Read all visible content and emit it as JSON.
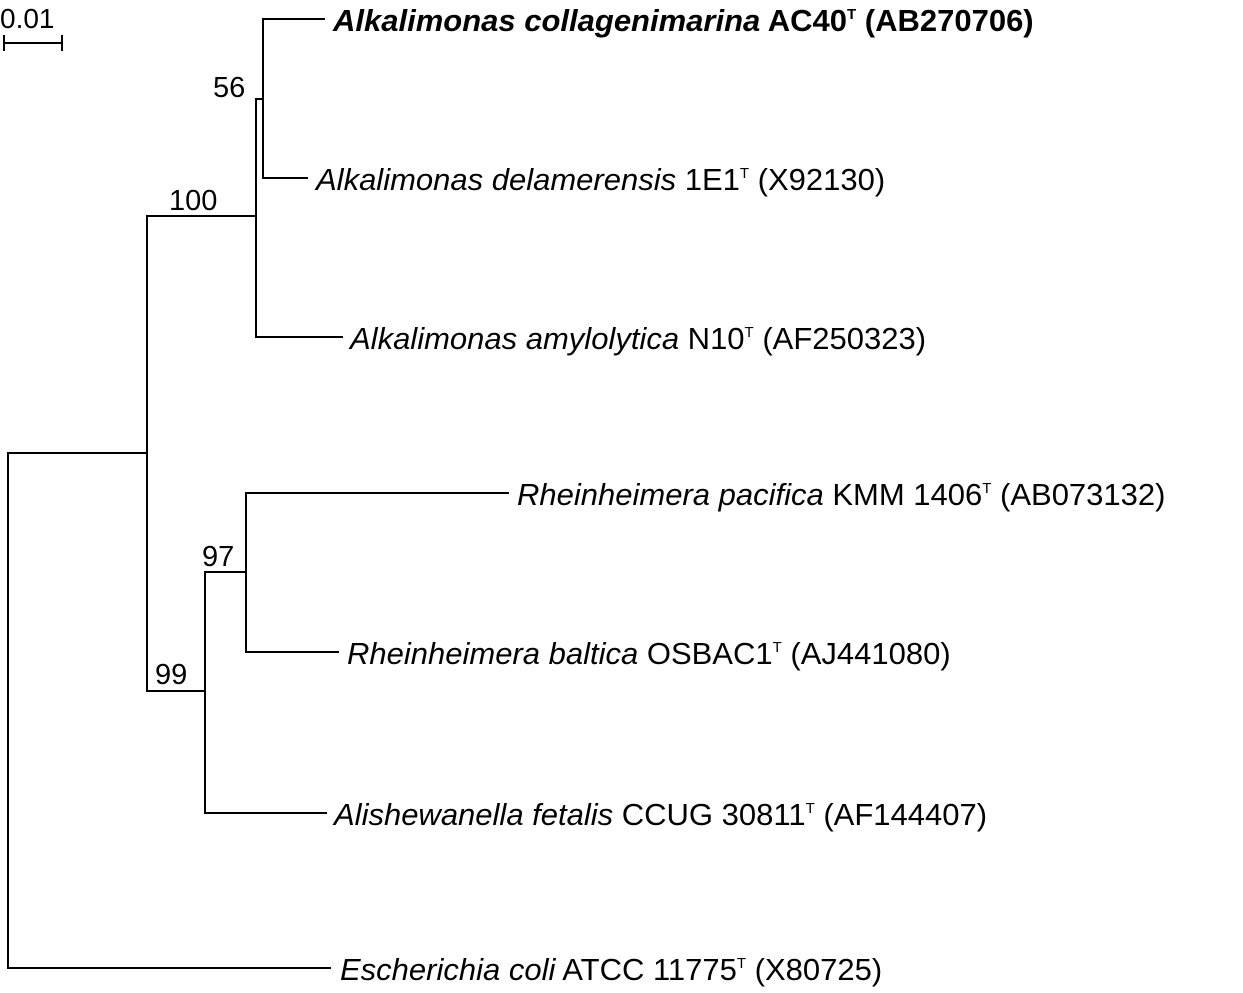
{
  "scale_bar": {
    "label": "0.01"
  },
  "support_values": {
    "node_56": "56",
    "node_100": "100",
    "node_97": "97",
    "node_99": "99"
  },
  "taxa": [
    {
      "id": "ac40",
      "genus_species": "Alkalimonas collagenimarina",
      "strain": " AC40",
      "type_mark": "T",
      "accession": " (AB270706)",
      "bold": true
    },
    {
      "id": "1e1",
      "genus_species": "Alkalimonas delamerensis",
      "strain": " 1E1",
      "type_mark": "T",
      "accession": " (X92130)",
      "bold": false
    },
    {
      "id": "n10",
      "genus_species": "Alkalimonas amylolytica",
      "strain": " N10",
      "type_mark": "T",
      "accession": " (AF250323)",
      "bold": false
    },
    {
      "id": "kmm1406",
      "genus_species": "Rheinheimera pacifica",
      "strain": " KMM 1406",
      "type_mark": "T",
      "accession": " (AB073132)",
      "bold": false
    },
    {
      "id": "osbac1",
      "genus_species": "Rheinheimera baltica",
      "strain": " OSBAC1",
      "type_mark": "T",
      "accession": " (AJ441080)",
      "bold": false
    },
    {
      "id": "ccug30811",
      "genus_species": "Alishewanella fetalis",
      "strain": " CCUG 30811",
      "type_mark": "T",
      "accession": " (AF144407)",
      "bold": false
    },
    {
      "id": "atcc11775",
      "genus_species": "Escherichia coli",
      "strain": " ATCC 11775",
      "type_mark": "T",
      "accession": " (X80725)",
      "bold": false
    }
  ]
}
